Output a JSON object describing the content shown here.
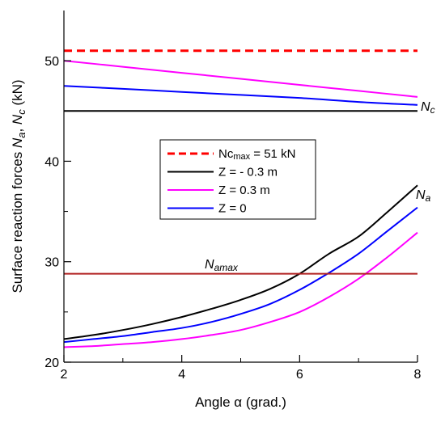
{
  "chart_data": {
    "type": "line",
    "xlabel": "Angle α (grad.)",
    "ylabel": "Surface reaction forces Na, Nc (kN)",
    "xlim": [
      2,
      8
    ],
    "ylim": [
      20,
      55
    ],
    "x_ticks": [
      "2",
      "4",
      "6",
      "8"
    ],
    "y_ticks": [
      "20",
      "30",
      "40",
      "50"
    ],
    "grid": false,
    "legend_position": "center",
    "annotations": [
      "Nc",
      "Na",
      "Namax"
    ],
    "series": [
      {
        "name": "Nc",
        "sub": "max",
        "label_rest": " = 51 kN",
        "color": "#ff0000",
        "style": "dashed",
        "x": [
          2,
          8
        ],
        "y": [
          51,
          51
        ]
      },
      {
        "name": "Z = - 0.3 m",
        "color": "#000000",
        "style": "solid",
        "x": [
          2,
          8
        ],
        "y": [
          45,
          45
        ]
      },
      {
        "name": "Z = 0.3 m",
        "color": "#ff00ff",
        "style": "solid",
        "x": [
          2,
          3,
          4,
          5,
          6,
          7,
          8
        ],
        "y": [
          50,
          49.4,
          48.8,
          48.2,
          47.6,
          47.0,
          46.4
        ]
      },
      {
        "name": "Z = 0",
        "color": "#0000ff",
        "style": "solid",
        "x": [
          2,
          3,
          4,
          5,
          6,
          7,
          8
        ],
        "y": [
          47.5,
          47.2,
          46.9,
          46.6,
          46.3,
          45.9,
          45.6
        ]
      },
      {
        "name": "Z = - 0.3 m",
        "color": "#000000",
        "style": "solid",
        "legend": false,
        "x": [
          2,
          2.5,
          3,
          3.5,
          4,
          4.5,
          5,
          5.5,
          6,
          6.5,
          7,
          7.5,
          8
        ],
        "y": [
          22.3,
          22.7,
          23.2,
          23.8,
          24.5,
          25.3,
          26.2,
          27.3,
          28.8,
          30.8,
          32.5,
          35.0,
          37.6
        ]
      },
      {
        "name": "Z = 0",
        "color": "#0000ff",
        "style": "solid",
        "legend": false,
        "x": [
          2,
          2.5,
          3,
          3.5,
          4,
          4.5,
          5,
          5.5,
          6,
          6.5,
          7,
          7.5,
          8
        ],
        "y": [
          22.0,
          22.3,
          22.6,
          23.0,
          23.4,
          24.0,
          24.8,
          25.8,
          27.2,
          28.9,
          30.8,
          33.1,
          35.4
        ]
      },
      {
        "name": "Z = 0.3 m",
        "color": "#ff00ff",
        "style": "solid",
        "legend": false,
        "x": [
          2,
          2.5,
          3,
          3.5,
          4,
          4.5,
          5,
          5.5,
          6,
          6.5,
          7,
          7.5,
          8
        ],
        "y": [
          21.5,
          21.6,
          21.8,
          22.0,
          22.3,
          22.7,
          23.2,
          24.0,
          25.0,
          26.5,
          28.3,
          30.5,
          32.9
        ]
      },
      {
        "name": "Namax",
        "color": "#b22222",
        "style": "solid",
        "legend": false,
        "x": [
          2,
          8
        ],
        "y": [
          28.8,
          28.8
        ]
      }
    ]
  }
}
